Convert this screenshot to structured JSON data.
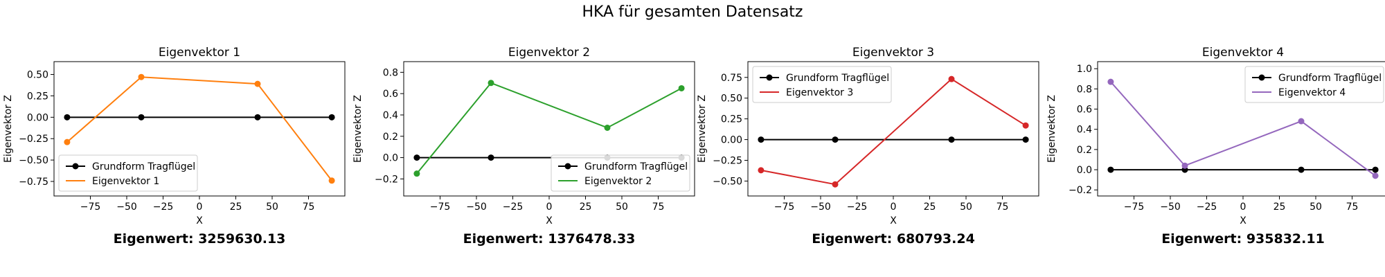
{
  "figure": {
    "suptitle": "HKA für gesamten Datensatz"
  },
  "chart_data": [
    {
      "type": "line",
      "title": "Eigenvektor 1",
      "xlabel": "X",
      "ylabel": "Eigenvektor Z",
      "xlim": [
        -100,
        100
      ],
      "ylim": [
        -0.92,
        0.65
      ],
      "xticks": [
        -75,
        -50,
        -25,
        0,
        25,
        50,
        75
      ],
      "xtick_labels": [
        "−75",
        "−50",
        "−25",
        "0",
        "25",
        "50",
        "75"
      ],
      "yticks": [
        -0.75,
        -0.5,
        -0.25,
        0.0,
        0.25,
        0.5
      ],
      "ytick_labels": [
        "−0.75",
        "−0.50",
        "−0.25",
        "0.00",
        "0.25",
        "0.50"
      ],
      "legend_loc": "lower-left",
      "eigenvalue_label": "Eigenwert: 3259630.13",
      "series": [
        {
          "name": "Grundform Tragflügel",
          "color": "#000000",
          "x": [
            -91,
            -40,
            40,
            91
          ],
          "y": [
            0,
            0,
            0,
            0
          ]
        },
        {
          "name": "Eigenvektor 1",
          "color": "#ff7f0e",
          "x": [
            -91,
            -40,
            40,
            91
          ],
          "y": [
            -0.29,
            0.47,
            0.39,
            -0.74
          ]
        }
      ]
    },
    {
      "type": "line",
      "title": "Eigenvektor 2",
      "xlabel": "X",
      "ylabel": "Eigenvektor Z",
      "xlim": [
        -100,
        100
      ],
      "ylim": [
        -0.36,
        0.9
      ],
      "xticks": [
        -75,
        -50,
        -25,
        0,
        25,
        50,
        75
      ],
      "xtick_labels": [
        "−75",
        "−50",
        "−25",
        "0",
        "25",
        "50",
        "75"
      ],
      "yticks": [
        -0.2,
        0.0,
        0.2,
        0.4,
        0.6,
        0.8
      ],
      "ytick_labels": [
        "−0.2",
        "0.0",
        "0.2",
        "0.4",
        "0.6",
        "0.8"
      ],
      "legend_loc": "lower-right",
      "eigenvalue_label": "Eigenwert: 1376478.33",
      "series": [
        {
          "name": "Grundform Tragflügel",
          "color": "#000000",
          "x": [
            -91,
            -40,
            40,
            91
          ],
          "y": [
            0,
            0,
            0,
            0
          ]
        },
        {
          "name": "Eigenvektor 2",
          "color": "#2ca02c",
          "x": [
            -91,
            -40,
            40,
            91
          ],
          "y": [
            -0.15,
            0.7,
            0.28,
            0.65
          ]
        }
      ]
    },
    {
      "type": "line",
      "title": "Eigenvektor 3",
      "xlabel": "X",
      "ylabel": "Eigenvektor Z",
      "xlim": [
        -100,
        100
      ],
      "ylim": [
        -0.68,
        0.94
      ],
      "xticks": [
        -75,
        -50,
        -25,
        0,
        25,
        50,
        75
      ],
      "xtick_labels": [
        "−75",
        "−50",
        "−25",
        "0",
        "25",
        "50",
        "75"
      ],
      "yticks": [
        -0.5,
        -0.25,
        0.0,
        0.25,
        0.5,
        0.75
      ],
      "ytick_labels": [
        "−0.50",
        "−0.25",
        "0.00",
        "0.25",
        "0.50",
        "0.75"
      ],
      "legend_loc": "upper-left",
      "eigenvalue_label": "Eigenwert: 680793.24",
      "series": [
        {
          "name": "Grundform Tragflügel",
          "color": "#000000",
          "x": [
            -91,
            -40,
            40,
            91
          ],
          "y": [
            0,
            0,
            0,
            0
          ]
        },
        {
          "name": "Eigenvektor 3",
          "color": "#d62728",
          "x": [
            -91,
            -40,
            40,
            91
          ],
          "y": [
            -0.37,
            -0.54,
            0.73,
            0.17
          ]
        }
      ]
    },
    {
      "type": "line",
      "title": "Eigenvektor 4",
      "xlabel": "X",
      "ylabel": "Eigenvektor Z",
      "xlim": [
        -100,
        100
      ],
      "ylim": [
        -0.26,
        1.07
      ],
      "xticks": [
        -75,
        -50,
        -25,
        0,
        25,
        50,
        75
      ],
      "xtick_labels": [
        "−75",
        "−50",
        "−25",
        "0",
        "25",
        "50",
        "75"
      ],
      "yticks": [
        -0.2,
        0.0,
        0.2,
        0.4,
        0.6,
        0.8,
        1.0
      ],
      "ytick_labels": [
        "−0.2",
        "0.0",
        "0.2",
        "0.4",
        "0.6",
        "0.8",
        "1.0"
      ],
      "legend_loc": "upper-right",
      "eigenvalue_label": "Eigenwert: 935832.11",
      "series": [
        {
          "name": "Grundform Tragflügel",
          "color": "#000000",
          "x": [
            -91,
            -40,
            40,
            91
          ],
          "y": [
            0,
            0,
            0,
            0
          ]
        },
        {
          "name": "Eigenvektor 4",
          "color": "#9467bd",
          "x": [
            -91,
            -40,
            40,
            91
          ],
          "y": [
            0.87,
            0.04,
            0.48,
            -0.06
          ]
        }
      ]
    }
  ]
}
